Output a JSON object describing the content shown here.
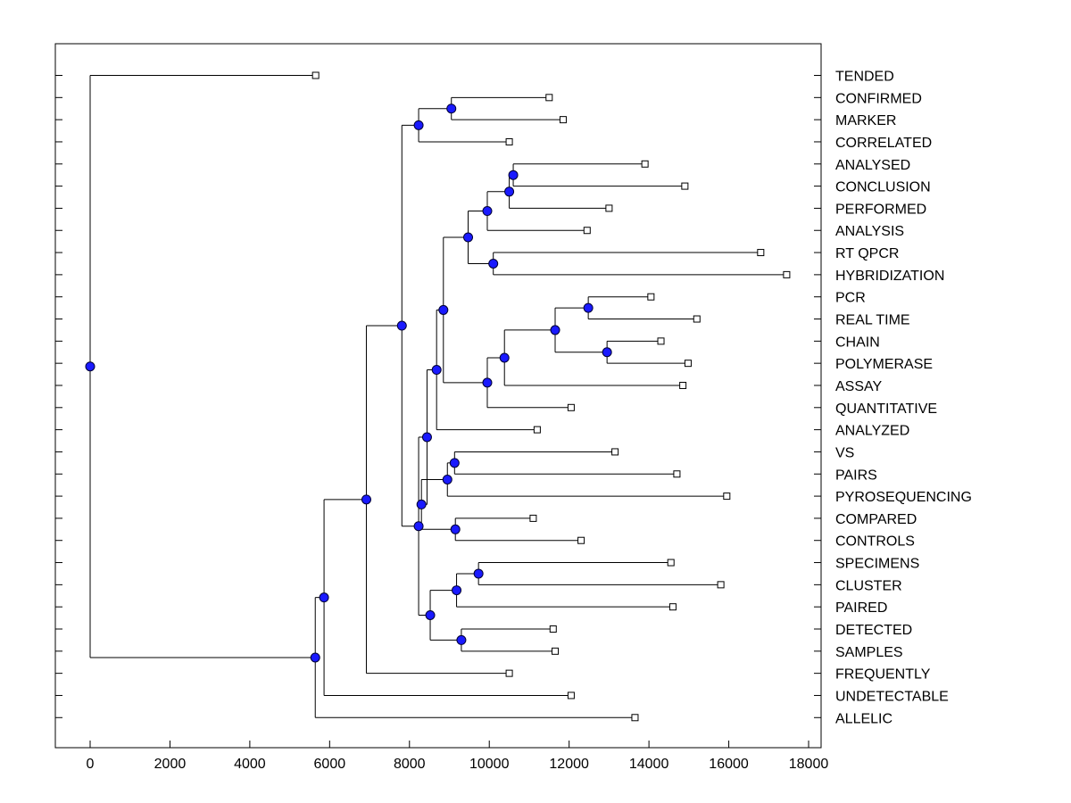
{
  "chart_data": {
    "type": "dendrogram",
    "orientation": "horizontal",
    "title": "",
    "xlabel": "",
    "ylabel": "",
    "xlim": [
      -900,
      18300
    ],
    "xticks": [
      0,
      2000,
      4000,
      6000,
      8000,
      10000,
      12000,
      14000,
      16000,
      18000
    ],
    "leaves": [
      {
        "label": "TENDED",
        "value": 5650
      },
      {
        "label": "CONFIRMED",
        "value": 11500
      },
      {
        "label": "MARKER",
        "value": 11850
      },
      {
        "label": "CORRELATED",
        "value": 10500
      },
      {
        "label": "ANALYSED",
        "value": 13900
      },
      {
        "label": "CONCLUSION",
        "value": 14900
      },
      {
        "label": "PERFORMED",
        "value": 13000
      },
      {
        "label": "ANALYSIS",
        "value": 12450
      },
      {
        "label": "RT QPCR",
        "value": 16800
      },
      {
        "label": "HYBRIDIZATION",
        "value": 17450
      },
      {
        "label": "PCR",
        "value": 14050
      },
      {
        "label": "REAL TIME",
        "value": 15200
      },
      {
        "label": "CHAIN",
        "value": 14300
      },
      {
        "label": "POLYMERASE",
        "value": 14980
      },
      {
        "label": "ASSAY",
        "value": 14850
      },
      {
        "label": "QUANTITATIVE",
        "value": 12050
      },
      {
        "label": "ANALYZED",
        "value": 11200
      },
      {
        "label": "VS",
        "value": 13150
      },
      {
        "label": "PAIRS",
        "value": 14700
      },
      {
        "label": "PYROSEQUENCING",
        "value": 15950
      },
      {
        "label": "COMPARED",
        "value": 11100
      },
      {
        "label": "CONTROLS",
        "value": 12300
      },
      {
        "label": "SPECIMENS",
        "value": 14550
      },
      {
        "label": "CLUSTER",
        "value": 15800
      },
      {
        "label": "PAIRED",
        "value": 14600
      },
      {
        "label": "DETECTED",
        "value": 11600
      },
      {
        "label": "SAMPLES",
        "value": 11650
      },
      {
        "label": "FREQUENTLY",
        "value": 10500
      },
      {
        "label": "UNDETECTABLE",
        "value": 12050
      },
      {
        "label": "ALLELIC",
        "value": 13650
      }
    ],
    "merges": [
      {
        "id": "m1",
        "value": 9050,
        "children": [
          "CONFIRMED",
          "MARKER"
        ]
      },
      {
        "id": "m2",
        "value": 8230,
        "children": [
          "m1",
          "CORRELATED"
        ]
      },
      {
        "id": "m3",
        "value": 10600,
        "children": [
          "ANALYSED",
          "CONCLUSION"
        ]
      },
      {
        "id": "m4",
        "value": 10500,
        "children": [
          "m3",
          "PERFORMED"
        ]
      },
      {
        "id": "m5",
        "value": 9950,
        "children": [
          "m4",
          "ANALYSIS"
        ]
      },
      {
        "id": "m6",
        "value": 10100,
        "children": [
          "RT QPCR",
          "HYBRIDIZATION"
        ]
      },
      {
        "id": "m7",
        "value": 9470,
        "children": [
          "m5",
          "m6"
        ]
      },
      {
        "id": "m8",
        "value": 12480,
        "children": [
          "PCR",
          "REAL TIME"
        ]
      },
      {
        "id": "m9",
        "value": 12950,
        "children": [
          "CHAIN",
          "POLYMERASE"
        ]
      },
      {
        "id": "m10",
        "value": 11650,
        "children": [
          "m8",
          "m9"
        ]
      },
      {
        "id": "m11",
        "value": 10380,
        "children": [
          "m10",
          "ASSAY"
        ]
      },
      {
        "id": "m12",
        "value": 9950,
        "children": [
          "m11",
          "QUANTITATIVE"
        ]
      },
      {
        "id": "m13",
        "value": 8850,
        "children": [
          "m7",
          "m12"
        ]
      },
      {
        "id": "m14",
        "value": 8680,
        "children": [
          "m13",
          "ANALYZED"
        ]
      },
      {
        "id": "m15",
        "value": 9130,
        "children": [
          "VS",
          "PAIRS"
        ]
      },
      {
        "id": "m16",
        "value": 8950,
        "children": [
          "m15",
          "PYROSEQUENCING"
        ]
      },
      {
        "id": "m17",
        "value": 9150,
        "children": [
          "COMPARED",
          "CONTROLS"
        ]
      },
      {
        "id": "m18",
        "value": 8300,
        "children": [
          "m16",
          "m17"
        ]
      },
      {
        "id": "m19",
        "value": 8440,
        "children": [
          "m14",
          "m18"
        ]
      },
      {
        "id": "m20",
        "value": 9730,
        "children": [
          "SPECIMENS",
          "CLUSTER"
        ]
      },
      {
        "id": "m21",
        "value": 9180,
        "children": [
          "m20",
          "PAIRED"
        ]
      },
      {
        "id": "m22",
        "value": 9300,
        "children": [
          "DETECTED",
          "SAMPLES"
        ]
      },
      {
        "id": "m23",
        "value": 8520,
        "children": [
          "m21",
          "m22"
        ]
      },
      {
        "id": "m24",
        "value": 8230,
        "children": [
          "m19",
          "m23"
        ]
      },
      {
        "id": "m25",
        "value": 7810,
        "children": [
          "m2",
          "m24"
        ]
      },
      {
        "id": "m26",
        "value": 6920,
        "children": [
          "m25",
          "FREQUENTLY"
        ]
      },
      {
        "id": "m27",
        "value": 5860,
        "children": [
          "m26",
          "UNDETECTABLE"
        ]
      },
      {
        "id": "m28",
        "value": 5640,
        "children": [
          "m27",
          "ALLELIC"
        ]
      },
      {
        "id": "m29",
        "value": 0,
        "children": [
          "TENDED",
          "m28"
        ]
      }
    ],
    "colors": {
      "node": "#1a1aff",
      "node_stroke": "#000033",
      "line": "#000000",
      "leaf_fill": "#ffffff"
    }
  }
}
